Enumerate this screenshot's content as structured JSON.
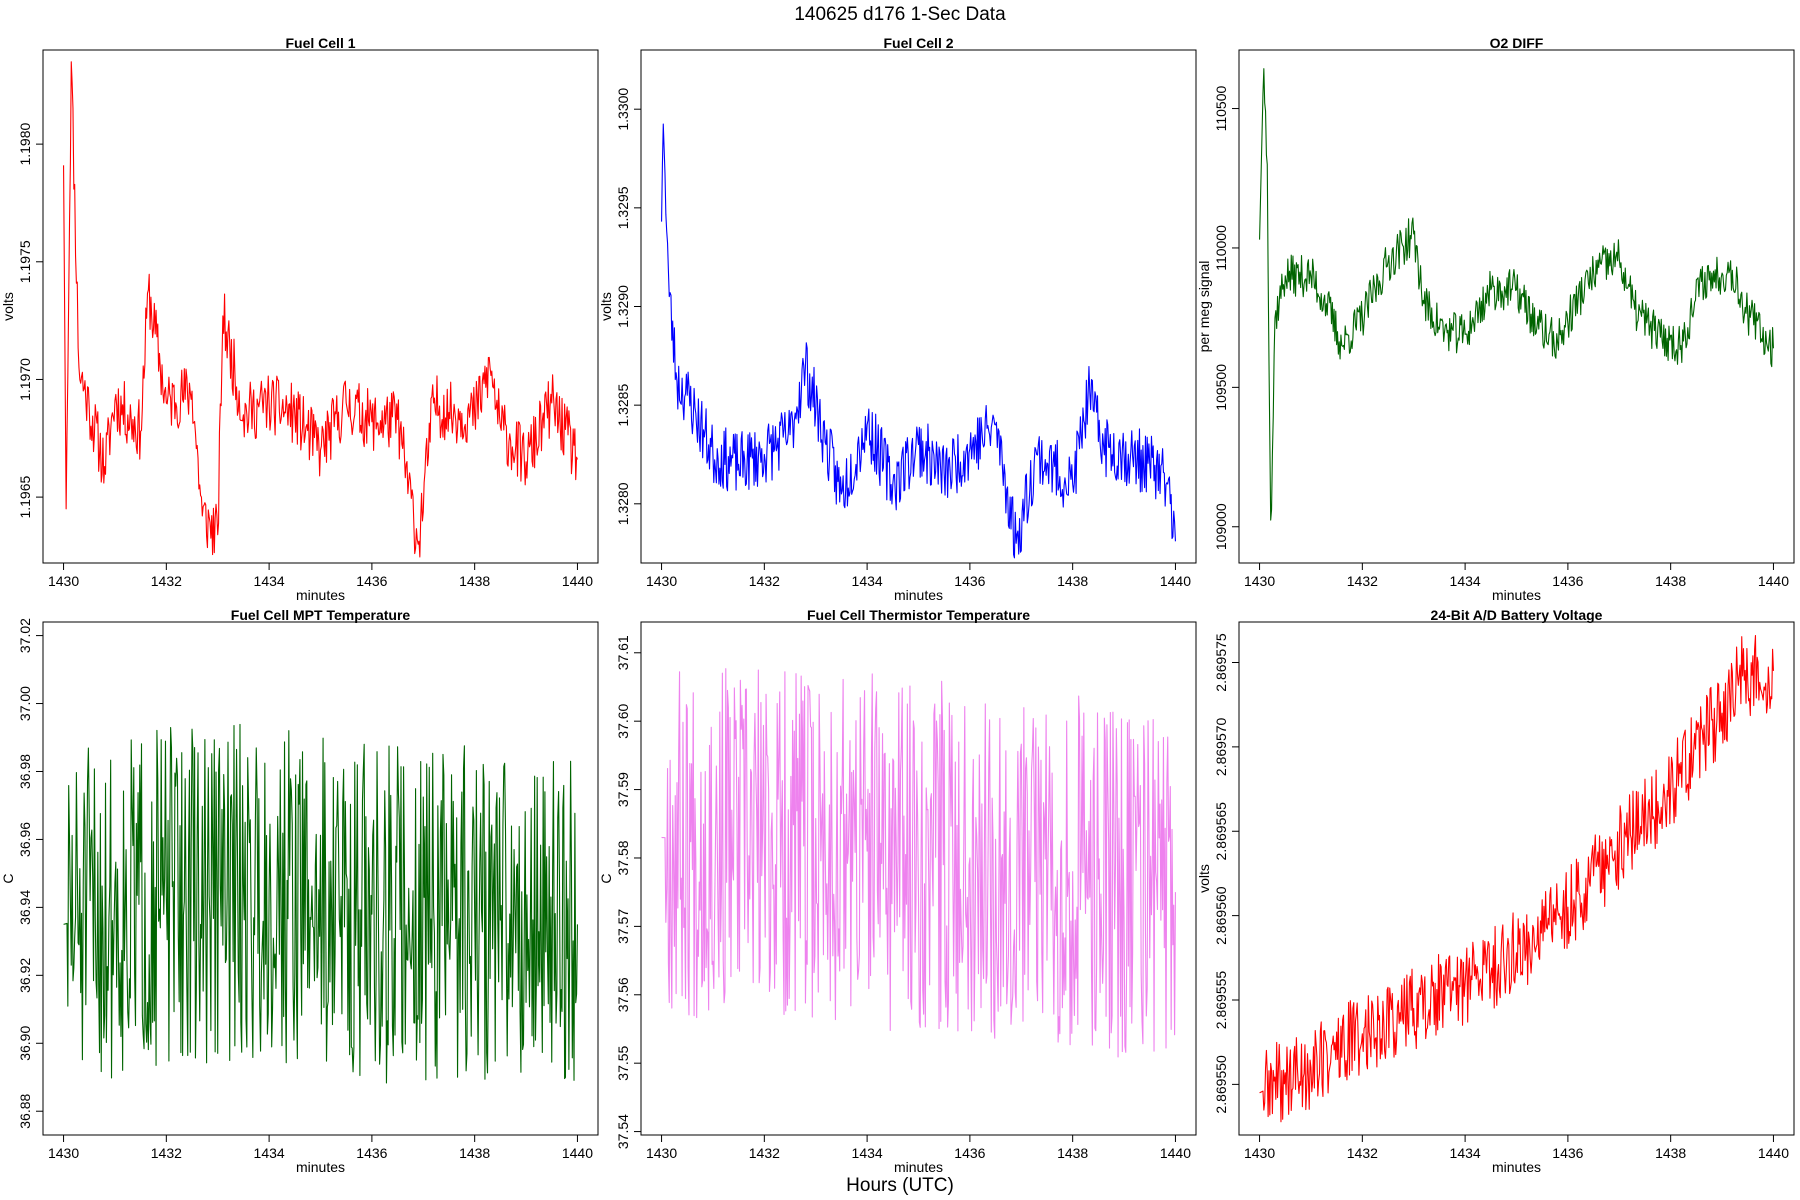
{
  "title": "140625   d176   1-Sec Data",
  "outer_xlabel": "Hours (UTC)",
  "chart_data": [
    {
      "type": "line",
      "title": "Fuel Cell 1",
      "xlabel": "minutes",
      "ylabel": "volts",
      "color": "#ff0000",
      "xlim": [
        1429.6,
        1440.4
      ],
      "ylim": [
        1.19622,
        1.1984
      ],
      "xticks": [
        "1430",
        "1432",
        "1434",
        "1436",
        "1438",
        "1440"
      ],
      "yticks": [
        "1.1965",
        "1.1970",
        "1.1975",
        "1.1980"
      ],
      "series": [
        {
          "x_start": 1430,
          "x_end": 1440,
          "key_points": [
            [
              1430.0,
              1.19791
            ],
            [
              1430.05,
              1.19645
            ],
            [
              1430.15,
              1.19835
            ],
            [
              1430.3,
              1.19705
            ],
            [
              1430.5,
              1.19688
            ],
            [
              1430.8,
              1.19663
            ],
            [
              1431.0,
              1.19691
            ],
            [
              1431.5,
              1.19678
            ],
            [
              1431.65,
              1.19738
            ],
            [
              1432.0,
              1.1969
            ],
            [
              1432.5,
              1.19695
            ],
            [
              1432.7,
              1.19642
            ],
            [
              1433.0,
              1.19634
            ],
            [
              1433.1,
              1.19727
            ],
            [
              1433.5,
              1.19685
            ],
            [
              1434.0,
              1.1969
            ],
            [
              1434.5,
              1.19685
            ],
            [
              1435.0,
              1.1967
            ],
            [
              1435.5,
              1.1969
            ],
            [
              1436.0,
              1.19682
            ],
            [
              1436.5,
              1.19683
            ],
            [
              1436.9,
              1.1963
            ],
            [
              1437.2,
              1.1969
            ],
            [
              1437.5,
              1.19686
            ],
            [
              1438.0,
              1.19685
            ],
            [
              1438.3,
              1.19705
            ],
            [
              1438.5,
              1.1968
            ],
            [
              1439.0,
              1.19665
            ],
            [
              1439.5,
              1.1969
            ],
            [
              1440.0,
              1.19666
            ]
          ],
          "noise": 0.00013,
          "seed": 11
        }
      ]
    },
    {
      "type": "line",
      "title": "Fuel Cell 2",
      "xlabel": "minutes",
      "ylabel": "volts",
      "color": "#0000ff",
      "xlim": [
        1429.6,
        1440.4
      ],
      "ylim": [
        1.3277,
        1.3303
      ],
      "xticks": [
        "1430",
        "1432",
        "1434",
        "1436",
        "1438",
        "1440"
      ],
      "yticks": [
        "1.3280",
        "1.3285",
        "1.3290",
        "1.3295",
        "1.3300"
      ],
      "series": [
        {
          "x_start": 1430,
          "x_end": 1440,
          "key_points": [
            [
              1430.0,
              1.32943
            ],
            [
              1430.03,
              1.32995
            ],
            [
              1430.15,
              1.32905
            ],
            [
              1430.3,
              1.32862
            ],
            [
              1430.5,
              1.32855
            ],
            [
              1431.0,
              1.32825
            ],
            [
              1431.5,
              1.3282
            ],
            [
              1432.0,
              1.32825
            ],
            [
              1432.5,
              1.32835
            ],
            [
              1432.8,
              1.3287
            ],
            [
              1433.2,
              1.3283
            ],
            [
              1433.5,
              1.32805
            ],
            [
              1434.0,
              1.3284
            ],
            [
              1434.5,
              1.3281
            ],
            [
              1435.0,
              1.3283
            ],
            [
              1435.5,
              1.32815
            ],
            [
              1436.0,
              1.32828
            ],
            [
              1436.5,
              1.3284
            ],
            [
              1436.9,
              1.3278
            ],
            [
              1437.3,
              1.32825
            ],
            [
              1438.0,
              1.3281
            ],
            [
              1438.3,
              1.32855
            ],
            [
              1438.6,
              1.3283
            ],
            [
              1439.0,
              1.32825
            ],
            [
              1439.5,
              1.3282
            ],
            [
              1439.85,
              1.3281
            ],
            [
              1440.0,
              1.32781
            ]
          ],
          "noise": 0.00016,
          "seed": 23
        }
      ]
    },
    {
      "type": "line",
      "title": "O2 DIFF",
      "xlabel": "minutes",
      "ylabel": "per meg signal",
      "color": "#006400",
      "xlim": [
        1429.6,
        1440.4
      ],
      "ylim": [
        108870,
        110710
      ],
      "xticks": [
        "1430",
        "1432",
        "1434",
        "1436",
        "1438",
        "1440"
      ],
      "yticks": [
        "109000",
        "109500",
        "110000",
        "110500"
      ],
      "series": [
        {
          "x_start": 1430,
          "x_end": 1440,
          "key_points": [
            [
              1430.0,
              110030
            ],
            [
              1430.08,
              110660
            ],
            [
              1430.15,
              110300
            ],
            [
              1430.22,
              108960
            ],
            [
              1430.3,
              109750
            ],
            [
              1430.5,
              109900
            ],
            [
              1431.0,
              109900
            ],
            [
              1431.3,
              109800
            ],
            [
              1431.6,
              109650
            ],
            [
              1432.0,
              109750
            ],
            [
              1432.5,
              109950
            ],
            [
              1433.0,
              110050
            ],
            [
              1433.2,
              109800
            ],
            [
              1433.6,
              109700
            ],
            [
              1434.0,
              109690
            ],
            [
              1434.5,
              109850
            ],
            [
              1435.0,
              109850
            ],
            [
              1435.4,
              109720
            ],
            [
              1435.8,
              109660
            ],
            [
              1436.2,
              109820
            ],
            [
              1436.6,
              109930
            ],
            [
              1437.0,
              109960
            ],
            [
              1437.3,
              109780
            ],
            [
              1437.8,
              109680
            ],
            [
              1438.2,
              109650
            ],
            [
              1438.6,
              109880
            ],
            [
              1439.0,
              109910
            ],
            [
              1439.2,
              109920
            ],
            [
              1439.5,
              109760
            ],
            [
              1440.0,
              109640
            ]
          ],
          "noise": 75,
          "seed": 37
        }
      ]
    },
    {
      "type": "line",
      "title": "Fuel Cell MPT Temperature",
      "xlabel": "minutes",
      "ylabel": "C",
      "color": "#006400",
      "xlim": [
        1429.6,
        1440.4
      ],
      "ylim": [
        36.873,
        37.024
      ],
      "xticks": [
        "1430",
        "1432",
        "1434",
        "1436",
        "1438",
        "1440"
      ],
      "yticks": [
        "36.88",
        "36.90",
        "36.92",
        "36.94",
        "36.96",
        "36.98",
        "37.00",
        "37.02"
      ],
      "series": [
        {
          "x_start": 1430,
          "x_end": 1440,
          "key_points": [
            [
              1430.0,
              36.935
            ],
            [
              1432.0,
              36.943
            ],
            [
              1434.0,
              36.945
            ],
            [
              1436.0,
              36.938
            ],
            [
              1438.0,
              36.938
            ],
            [
              1440.0,
              36.935
            ]
          ],
          "noise": 0.05,
          "seed": 51
        }
      ]
    },
    {
      "type": "line",
      "title": "Fuel Cell Thermistor Temperature",
      "xlabel": "minutes",
      "ylabel": "C",
      "color": "#ee82ee",
      "xlim": [
        1429.6,
        1440.4
      ],
      "ylim": [
        37.5395,
        37.6145
      ],
      "xticks": [
        "1430",
        "1432",
        "1434",
        "1436",
        "1438",
        "1440"
      ],
      "yticks": [
        "37.54",
        "37.55",
        "37.56",
        "37.57",
        "37.58",
        "37.59",
        "37.60",
        "37.61"
      ],
      "series": [
        {
          "x_start": 1430,
          "x_end": 1440,
          "key_points": [
            [
              1430.0,
              37.583
            ],
            [
              1432.0,
              37.582
            ],
            [
              1434.0,
              37.581
            ],
            [
              1436.0,
              37.58
            ],
            [
              1438.0,
              37.578
            ],
            [
              1440.0,
              37.575
            ]
          ],
          "noise": 0.026,
          "seed": 67
        }
      ]
    },
    {
      "type": "line",
      "title": "24-Bit A/D Battery Voltage",
      "xlabel": "minutes",
      "ylabel": "volts",
      "color": "#ff0000",
      "xlim": [
        1429.6,
        1440.4
      ],
      "ylim": [
        2.869547,
        2.8695774
      ],
      "xticks": [
        "1430",
        "1432",
        "1434",
        "1436",
        "1438",
        "1440"
      ],
      "yticks": [
        "2.869550",
        "2.869555",
        "2.869560",
        "2.869565",
        "2.869570",
        "2.869575"
      ],
      "series": [
        {
          "x_start": 1430,
          "x_end": 1440,
          "key_points": [
            [
              1430.0,
              2.8695495
            ],
            [
              1431.0,
              2.869551
            ],
            [
              1432.0,
              2.869553
            ],
            [
              1433.0,
              2.8695545
            ],
            [
              1434.0,
              2.869556
            ],
            [
              1435.0,
              2.8695578
            ],
            [
              1436.0,
              2.8695605
            ],
            [
              1437.0,
              2.869564
            ],
            [
              1438.0,
              2.8695675
            ],
            [
              1439.0,
              2.869572
            ],
            [
              1439.4,
              2.8695742
            ],
            [
              1440.0,
              2.8695745
            ]
          ],
          "noise": 2.5e-06,
          "seed": 89
        }
      ]
    }
  ]
}
